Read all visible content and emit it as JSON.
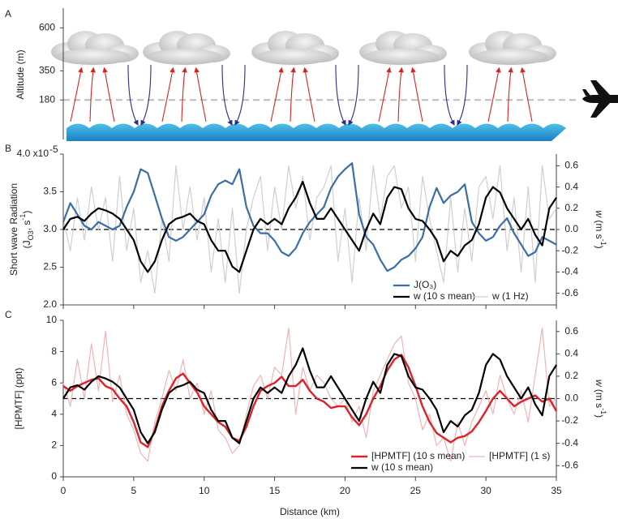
{
  "chart_data": [
    {
      "type": "schematic",
      "panel_label": "A",
      "ylabel": "Altitude (m)",
      "ylim": [
        -50,
        715
      ],
      "yticks": [
        180,
        350,
        600
      ]
    },
    {
      "type": "line",
      "panel_label": "B",
      "ylabel": [
        [
          {
            "text": "Short wave Radiation"
          }
        ],
        [
          {
            "text": "(J"
          },
          {
            "text": "O3",
            "shift": "sub"
          },
          {
            "text": ", s"
          },
          {
            "text": "-1",
            "shift": "sup"
          },
          {
            "text": ")"
          }
        ]
      ],
      "y2label": [
        {
          "text": "w",
          "italic": true
        },
        {
          "text": " (m s"
        },
        {
          "text": "-1",
          "shift": "sup"
        },
        {
          "text": ")"
        }
      ],
      "axis_color": "#3b6ea5",
      "xlim": [
        0,
        35
      ],
      "ylim": [
        2.0,
        4.0
      ],
      "yticks": [
        {
          "value": 2.0,
          "label": "2.0"
        },
        2.5,
        {
          "value": 3.0,
          "label": "3.0"
        },
        3.5,
        {
          "value": 4.0,
          "label": "4.0 x10"
        }
      ],
      "yexp": "-5",
      "y2lim": [
        -0.71,
        0.71
      ],
      "y2ticks": [
        -0.6,
        -0.4,
        -0.2,
        {
          "value": 0,
          "label": "0.0"
        },
        0.2,
        0.4,
        0.6
      ],
      "y2_refline": 0,
      "legend": "lower right",
      "x": [
        0,
        0.5,
        1,
        1.5,
        2,
        2.5,
        3,
        3.5,
        4,
        4.5,
        5,
        5.5,
        6,
        6.5,
        7,
        7.5,
        8,
        8.5,
        9,
        9.5,
        10,
        10.5,
        11,
        11.5,
        12,
        12.5,
        13,
        13.5,
        14,
        14.5,
        15,
        15.5,
        16,
        16.5,
        17,
        17.5,
        18,
        18.5,
        19,
        19.5,
        20,
        20.5,
        21,
        21.5,
        22,
        22.5,
        23,
        23.5,
        24,
        24.5,
        25,
        25.5,
        26,
        26.5,
        27,
        27.5,
        28,
        28.5,
        29,
        29.5,
        30,
        30.5,
        31,
        31.5,
        32,
        32.5,
        33,
        33.5,
        34,
        34.5,
        35
      ],
      "series": [
        {
          "name": "J(O₃)",
          "color": "#3b6ea5",
          "width": 2.2,
          "values": [
            3.1,
            3.35,
            3.2,
            3.05,
            3.0,
            3.1,
            3.05,
            3.0,
            3.05,
            3.3,
            3.5,
            3.8,
            3.75,
            3.45,
            3.15,
            2.9,
            2.85,
            2.9,
            3.0,
            3.1,
            3.2,
            3.45,
            3.6,
            3.65,
            3.6,
            3.8,
            3.3,
            3.05,
            2.95,
            2.95,
            2.85,
            2.7,
            2.65,
            2.75,
            2.95,
            3.1,
            3.2,
            3.3,
            3.55,
            3.7,
            3.8,
            3.88,
            3.2,
            2.9,
            2.8,
            2.6,
            2.45,
            2.5,
            2.6,
            2.65,
            2.75,
            2.9,
            3.3,
            3.55,
            3.35,
            3.45,
            3.5,
            3.6,
            3.1,
            2.95,
            2.85,
            2.9,
            3.05,
            3.15,
            2.95,
            2.8,
            2.65,
            2.7,
            2.9,
            2.85,
            2.8
          ]
        },
        {
          "name": "w (10 s mean)",
          "color": "#000000",
          "width": 2.2,
          "axis": "y2",
          "values": [
            0.0,
            0.1,
            0.12,
            0.08,
            0.15,
            0.2,
            0.18,
            0.15,
            0.1,
            0.0,
            -0.1,
            -0.3,
            -0.4,
            -0.3,
            -0.1,
            0.05,
            0.1,
            0.12,
            0.15,
            0.08,
            0.05,
            -0.1,
            -0.2,
            -0.2,
            -0.35,
            -0.4,
            -0.2,
            0.0,
            0.1,
            0.05,
            0.1,
            0.05,
            0.2,
            0.3,
            0.45,
            0.25,
            0.1,
            0.1,
            0.2,
            0.1,
            0.0,
            -0.1,
            -0.2,
            0.0,
            0.15,
            0.05,
            0.3,
            0.4,
            0.38,
            0.2,
            0.1,
            0.08,
            0.0,
            -0.1,
            -0.3,
            -0.2,
            -0.25,
            -0.15,
            -0.1,
            0.05,
            0.3,
            0.4,
            0.35,
            0.2,
            0.1,
            0.0,
            0.1,
            -0.05,
            -0.15,
            0.2,
            0.3
          ]
        },
        {
          "name": "w (1 Hz)",
          "color": "#cfcfcf",
          "width": 1.2,
          "axis": "y2",
          "values": [
            0.1,
            -0.2,
            0.3,
            -0.1,
            0.4,
            0.0,
            0.3,
            -0.3,
            0.5,
            -0.2,
            0.2,
            -0.5,
            -0.2,
            -0.6,
            0.1,
            -0.3,
            0.6,
            0.0,
            0.4,
            -0.1,
            0.3,
            -0.4,
            0.1,
            -0.5,
            0.2,
            -0.6,
            0.0,
            0.3,
            0.5,
            -0.2,
            0.4,
            0.0,
            0.6,
            0.2,
            0.5,
            -0.1,
            0.3,
            0.4,
            0.6,
            -0.3,
            0.2,
            -0.5,
            0.3,
            -0.2,
            0.6,
            0.1,
            0.5,
            0.6,
            0.2,
            0.4,
            -0.3,
            0.5,
            0.1,
            -0.2,
            -0.5,
            0.3,
            -0.4,
            0.2,
            -0.3,
            0.4,
            0.5,
            0.1,
            0.6,
            -0.2,
            0.3,
            -0.4,
            0.4,
            -0.5,
            0.6,
            0.1,
            0.2
          ]
        }
      ]
    },
    {
      "type": "line",
      "panel_label": "C",
      "ylabel": [
        [
          {
            "text": "[HPMTF] (ppt)"
          }
        ]
      ],
      "y2label": [
        {
          "text": "w",
          "italic": true
        },
        {
          "text": " (m s"
        },
        {
          "text": "-1",
          "shift": "sup"
        },
        {
          "text": ")"
        }
      ],
      "axis_color": "#e0202a",
      "xlabel": "Distance (km)",
      "xlim": [
        0,
        35
      ],
      "xticks": [
        0,
        5,
        10,
        15,
        20,
        25,
        30,
        35
      ],
      "ylim": [
        0,
        10
      ],
      "yticks": [
        0,
        2,
        4,
        6,
        8,
        10
      ],
      "y2lim": [
        -0.7,
        0.7
      ],
      "y2ticks": [
        -0.6,
        -0.4,
        -0.2,
        {
          "value": 0,
          "label": "0.0"
        },
        0.2,
        0.4,
        0.6
      ],
      "y2_refline": 0,
      "legend": "lower right",
      "x": [
        0,
        0.5,
        1,
        1.5,
        2,
        2.5,
        3,
        3.5,
        4,
        4.5,
        5,
        5.5,
        6,
        6.5,
        7,
        7.5,
        8,
        8.5,
        9,
        9.5,
        10,
        10.5,
        11,
        11.5,
        12,
        12.5,
        13,
        13.5,
        14,
        14.5,
        15,
        15.5,
        16,
        16.5,
        17,
        17.5,
        18,
        18.5,
        19,
        19.5,
        20,
        20.5,
        21,
        21.5,
        22,
        22.5,
        23,
        23.5,
        24,
        24.5,
        25,
        25.5,
        26,
        26.5,
        27,
        27.5,
        28,
        28.5,
        29,
        29.5,
        30,
        30.5,
        31,
        31.5,
        32,
        32.5,
        33,
        33.5,
        34,
        34.5,
        35
      ],
      "series": [
        {
          "name": "[HPMTF] (10 s mean)",
          "color": "#e0202a",
          "width": 2.4,
          "values": [
            5.8,
            5.5,
            5.8,
            6.0,
            6.2,
            6.3,
            5.8,
            5.6,
            5.0,
            4.5,
            3.5,
            2.2,
            1.9,
            3.0,
            4.5,
            5.5,
            6.3,
            6.6,
            6.0,
            5.4,
            4.5,
            4.0,
            3.5,
            3.2,
            2.5,
            2.3,
            3.2,
            4.5,
            5.5,
            5.8,
            6.0,
            6.4,
            5.8,
            5.8,
            6.2,
            5.5,
            5.0,
            4.8,
            4.4,
            4.5,
            4.5,
            3.8,
            3.3,
            4.0,
            5.0,
            5.8,
            6.8,
            7.5,
            7.8,
            7.0,
            5.8,
            4.5,
            3.5,
            2.8,
            2.5,
            2.2,
            2.5,
            2.6,
            2.9,
            3.5,
            4.2,
            5.0,
            5.5,
            5.0,
            4.5,
            4.8,
            5.0,
            5.2,
            4.8,
            5.0,
            4.2
          ]
        },
        {
          "name": "w (10 s mean)",
          "color": "#000000",
          "width": 2.2,
          "axis": "y2",
          "values": [
            0.0,
            0.1,
            0.12,
            0.08,
            0.15,
            0.2,
            0.18,
            0.15,
            0.1,
            0.0,
            -0.1,
            -0.3,
            -0.4,
            -0.3,
            -0.1,
            0.05,
            0.1,
            0.12,
            0.15,
            0.08,
            0.05,
            -0.1,
            -0.2,
            -0.2,
            -0.35,
            -0.4,
            -0.2,
            0.0,
            0.1,
            0.05,
            0.1,
            0.05,
            0.2,
            0.3,
            0.45,
            0.25,
            0.1,
            0.1,
            0.2,
            0.1,
            0.0,
            -0.1,
            -0.2,
            0.0,
            0.15,
            0.05,
            0.3,
            0.4,
            0.38,
            0.2,
            0.1,
            0.08,
            0.0,
            -0.1,
            -0.3,
            -0.2,
            -0.25,
            -0.15,
            -0.1,
            0.05,
            0.3,
            0.4,
            0.35,
            0.2,
            0.1,
            0.0,
            0.1,
            -0.05,
            -0.15,
            0.2,
            0.3
          ]
        },
        {
          "name": "[HPMTF] (1 s)",
          "color": "#f0b4b4",
          "width": 1.2,
          "values": [
            6.0,
            4.5,
            7.5,
            5.0,
            8.5,
            5.5,
            9.3,
            4.8,
            6.5,
            4.0,
            3.0,
            1.5,
            1.0,
            3.5,
            5.0,
            6.8,
            5.5,
            7.5,
            5.0,
            6.0,
            4.0,
            5.5,
            3.0,
            2.5,
            1.5,
            2.0,
            4.0,
            5.8,
            6.5,
            5.0,
            7.0,
            6.5,
            9.5,
            4.0,
            7.0,
            5.5,
            6.5,
            6.0,
            5.0,
            4.5,
            5.0,
            3.5,
            4.5,
            2.5,
            5.5,
            6.5,
            7.5,
            8.5,
            9.0,
            6.0,
            5.0,
            3.0,
            4.0,
            2.0,
            2.5,
            1.0,
            3.5,
            2.0,
            3.5,
            4.5,
            5.5,
            4.0,
            6.5,
            5.0,
            4.0,
            5.5,
            3.5,
            6.5,
            9.5,
            4.5,
            5.0
          ]
        }
      ]
    }
  ]
}
